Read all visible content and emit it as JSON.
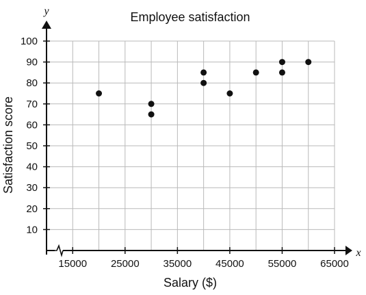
{
  "chart_data": {
    "type": "scatter",
    "title": "Employee satisfaction",
    "xlabel": "Salary ($)",
    "ylabel": "Satisfaction score",
    "x_axis_symbol": "x",
    "y_axis_symbol": "y",
    "xlim": [
      10000,
      65000
    ],
    "ylim": [
      0,
      100
    ],
    "x_axis_break": true,
    "x_ticks": [
      "15000",
      "25000",
      "35000",
      "45000",
      "55000",
      "65000"
    ],
    "y_ticks": [
      "10",
      "20",
      "30",
      "40",
      "50",
      "60",
      "70",
      "80",
      "90",
      "100"
    ],
    "grid": true,
    "series": [
      {
        "points": [
          {
            "x": 20000,
            "y": 75
          },
          {
            "x": 30000,
            "y": 70
          },
          {
            "x": 30000,
            "y": 65
          },
          {
            "x": 40000,
            "y": 85
          },
          {
            "x": 40000,
            "y": 80
          },
          {
            "x": 45000,
            "y": 75
          },
          {
            "x": 50000,
            "y": 85
          },
          {
            "x": 55000,
            "y": 90
          },
          {
            "x": 55000,
            "y": 85
          },
          {
            "x": 60000,
            "y": 90
          }
        ]
      }
    ]
  }
}
